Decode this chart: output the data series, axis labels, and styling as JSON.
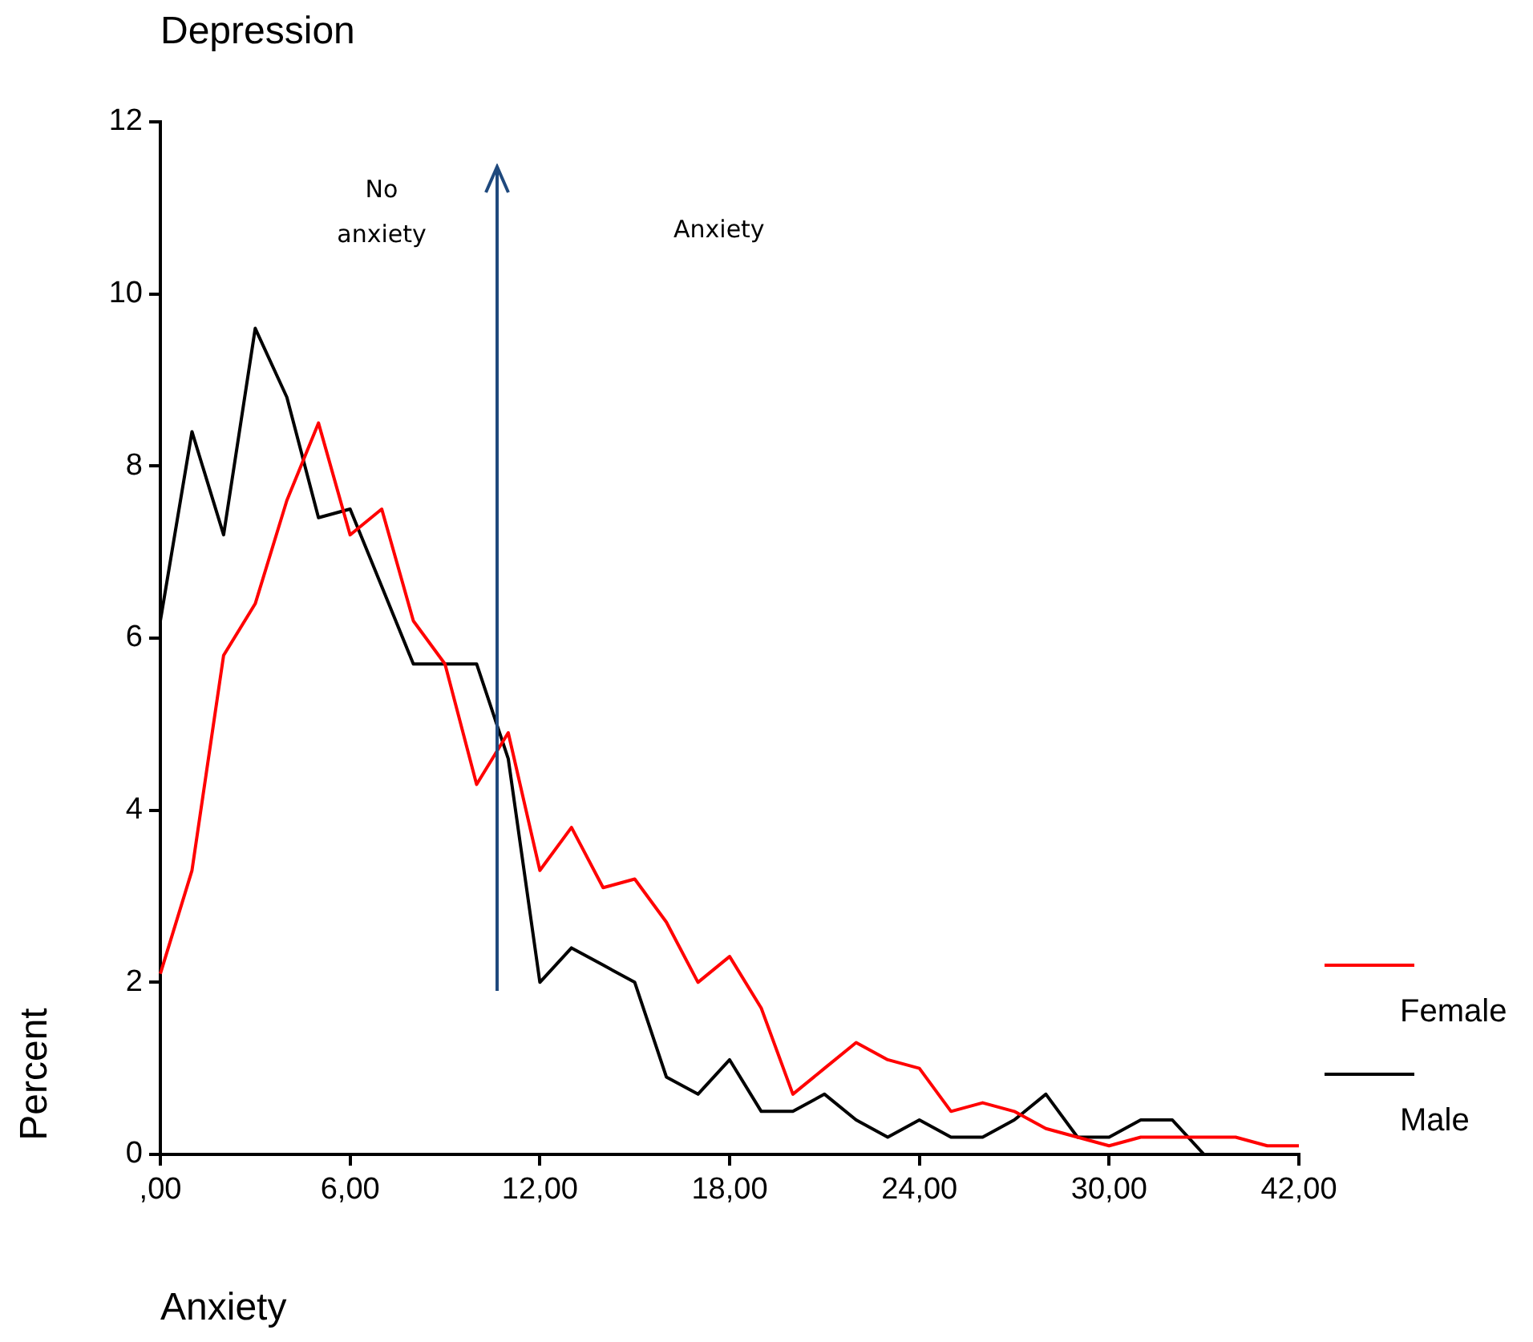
{
  "chart_data": {
    "type": "line",
    "title": "Depression",
    "xlabel": "Anxiety",
    "ylabel": "Percent",
    "annotations": [
      "No anxiety",
      "Anxiety"
    ],
    "categories": [
      ",00",
      null,
      null,
      null,
      null,
      null,
      "6,00",
      null,
      null,
      null,
      null,
      null,
      "12,00",
      null,
      null,
      null,
      null,
      null,
      "18,00",
      null,
      null,
      null,
      null,
      null,
      "24,00",
      null,
      null,
      null,
      null,
      null,
      "30,00",
      null,
      null,
      null,
      null,
      null,
      "42,00"
    ],
    "series": [
      {
        "name": "Female",
        "color": "#ff0000",
        "values": [
          2.1,
          3.3,
          5.8,
          6.4,
          7.6,
          8.5,
          7.2,
          7.5,
          6.2,
          5.7,
          4.3,
          4.9,
          3.3,
          3.8,
          3.1,
          3.2,
          2.7,
          2.0,
          2.3,
          1.7,
          0.7,
          1.0,
          1.3,
          1.1,
          1.0,
          0.5,
          0.6,
          0.5,
          0.3,
          0.2,
          0.1,
          0.2,
          0.2,
          0.2,
          0.2,
          0.1,
          0.1
        ]
      },
      {
        "name": "Male",
        "color": "#000000",
        "values": [
          6.2,
          8.4,
          7.2,
          9.6,
          8.8,
          7.4,
          7.5,
          6.6,
          5.7,
          5.7,
          5.7,
          4.6,
          2.0,
          2.4,
          2.2,
          2.0,
          0.9,
          0.7,
          1.1,
          0.5,
          0.5,
          0.7,
          0.4,
          0.2,
          0.4,
          0.2,
          0.2,
          0.4,
          0.7,
          0.2,
          0.2,
          0.4,
          0.4,
          0,
          0,
          0,
          0
        ]
      }
    ],
    "ylim": [
      0,
      12
    ],
    "yticks": [
      0,
      2,
      4,
      6,
      8,
      10,
      12
    ],
    "grid": false,
    "legend": "right",
    "marker": "none",
    "line_style": "solid"
  }
}
